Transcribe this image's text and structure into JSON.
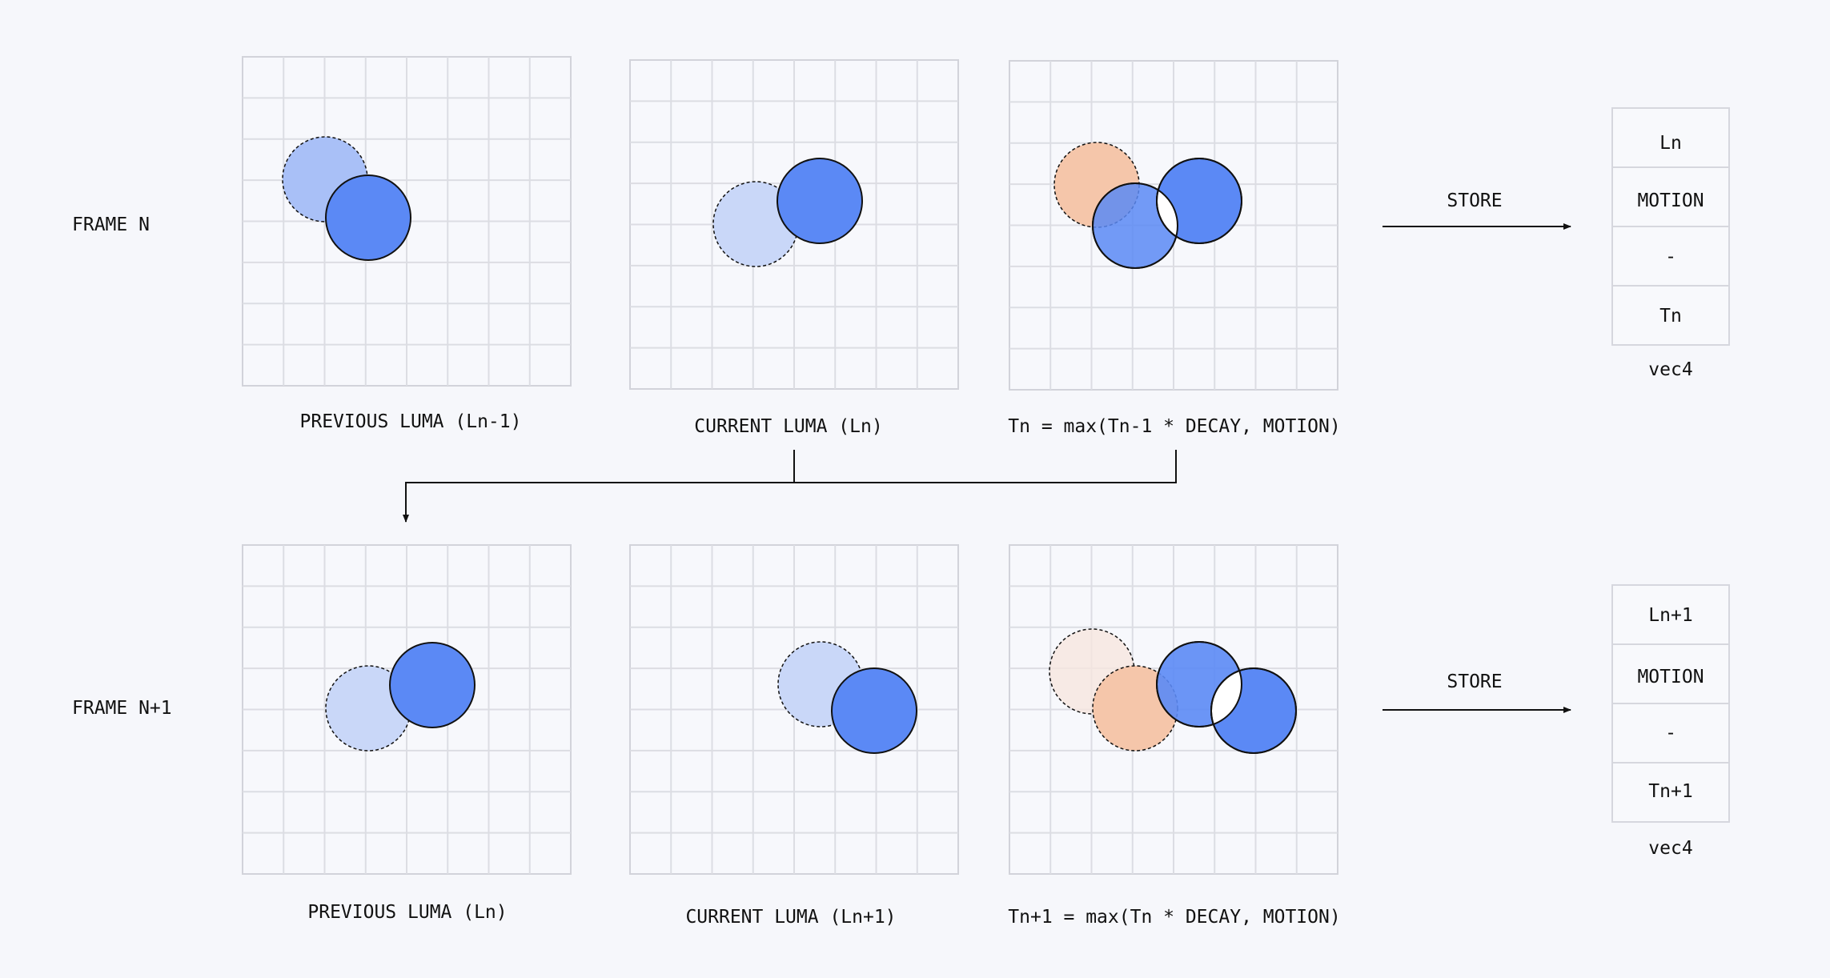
{
  "colors": {
    "background": "#f6f7fb",
    "grid_line": "#dcdde3",
    "grid_border": "#d2d3da",
    "circle_blue": "#5b89f5",
    "circle_blue_light": "#a9c0f7",
    "circle_blue_faint": "#c9d7f8",
    "circle_orange": "#f5c6aa",
    "circle_orange_faint": "#f6e6df",
    "stroke": "#111111",
    "storage_border": "#d6d7de",
    "storage_fill": "#f8f9fc"
  },
  "rows": [
    {
      "row_label": "FRAME N",
      "panels": [
        {
          "caption": "PREVIOUS LUMA (Ln-1)"
        },
        {
          "caption": "CURRENT LUMA (Ln)"
        },
        {
          "caption": "Tn = max(Tn-1 * DECAY, MOTION)"
        }
      ],
      "store_label": "STORE",
      "storage": {
        "cells": [
          "Ln",
          "MOTION",
          "-",
          "Tn"
        ],
        "type_label": "vec4"
      }
    },
    {
      "row_label": "FRAME N+1",
      "panels": [
        {
          "caption": "PREVIOUS LUMA (Ln)"
        },
        {
          "caption": "CURRENT LUMA (Ln+1)"
        },
        {
          "caption": "Tn+1 = max(Tn * DECAY, MOTION)"
        }
      ],
      "store_label": "STORE",
      "storage": {
        "cells": [
          "Ln+1",
          "MOTION",
          "-",
          "Tn+1"
        ],
        "type_label": "vec4"
      }
    }
  ]
}
